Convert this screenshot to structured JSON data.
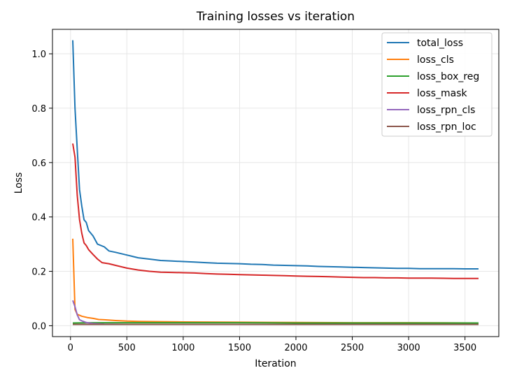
{
  "chart_data": {
    "type": "line",
    "title": "Training losses vs iteration",
    "xlabel": "Iteration",
    "ylabel": "Loss",
    "xlim": [
      -160,
      3800
    ],
    "ylim": [
      -0.04,
      1.09
    ],
    "xticks": [
      0,
      500,
      1000,
      1500,
      2000,
      2500,
      3000,
      3500
    ],
    "yticks": [
      0.0,
      0.2,
      0.4,
      0.6,
      0.8,
      1.0
    ],
    "ytick_labels": [
      "0.0",
      "0.2",
      "0.4",
      "0.6",
      "0.8",
      "1.0"
    ],
    "grid": true,
    "legend_position": "top-right",
    "series": [
      {
        "name": "total_loss",
        "color": "#1f77b4",
        "points": [
          [
            20,
            1.05
          ],
          [
            40,
            0.8
          ],
          [
            60,
            0.65
          ],
          [
            80,
            0.5
          ],
          [
            100,
            0.44
          ],
          [
            120,
            0.39
          ],
          [
            140,
            0.38
          ],
          [
            160,
            0.35
          ],
          [
            200,
            0.33
          ],
          [
            240,
            0.3
          ],
          [
            300,
            0.29
          ],
          [
            340,
            0.275
          ],
          [
            400,
            0.27
          ],
          [
            500,
            0.26
          ],
          [
            550,
            0.255
          ],
          [
            600,
            0.25
          ],
          [
            700,
            0.245
          ],
          [
            800,
            0.24
          ],
          [
            900,
            0.238
          ],
          [
            1000,
            0.236
          ],
          [
            1100,
            0.234
          ],
          [
            1200,
            0.232
          ],
          [
            1300,
            0.23
          ],
          [
            1400,
            0.229
          ],
          [
            1500,
            0.228
          ],
          [
            1600,
            0.226
          ],
          [
            1700,
            0.225
          ],
          [
            1800,
            0.223
          ],
          [
            1900,
            0.222
          ],
          [
            2000,
            0.221
          ],
          [
            2100,
            0.22
          ],
          [
            2200,
            0.218
          ],
          [
            2300,
            0.217
          ],
          [
            2400,
            0.216
          ],
          [
            2500,
            0.215
          ],
          [
            2600,
            0.214
          ],
          [
            2700,
            0.213
          ],
          [
            2800,
            0.212
          ],
          [
            2900,
            0.211
          ],
          [
            3000,
            0.211
          ],
          [
            3100,
            0.21
          ],
          [
            3200,
            0.21
          ],
          [
            3300,
            0.21
          ],
          [
            3400,
            0.21
          ],
          [
            3500,
            0.209
          ],
          [
            3620,
            0.209
          ]
        ]
      },
      {
        "name": "loss_cls",
        "color": "#ff7f0e",
        "points": [
          [
            20,
            0.32
          ],
          [
            40,
            0.06
          ],
          [
            60,
            0.042
          ],
          [
            100,
            0.035
          ],
          [
            150,
            0.03
          ],
          [
            200,
            0.027
          ],
          [
            250,
            0.023
          ],
          [
            300,
            0.022
          ],
          [
            400,
            0.019
          ],
          [
            500,
            0.017
          ],
          [
            600,
            0.016
          ],
          [
            800,
            0.015
          ],
          [
            1000,
            0.014
          ],
          [
            1500,
            0.013
          ],
          [
            2000,
            0.012
          ],
          [
            2500,
            0.011
          ],
          [
            3000,
            0.011
          ],
          [
            3620,
            0.01
          ]
        ]
      },
      {
        "name": "loss_box_reg",
        "color": "#2ca02c",
        "points": [
          [
            20,
            0.01
          ],
          [
            200,
            0.011
          ],
          [
            500,
            0.011
          ],
          [
            1000,
            0.011
          ],
          [
            1500,
            0.011
          ],
          [
            2000,
            0.01
          ],
          [
            2500,
            0.01
          ],
          [
            3000,
            0.01
          ],
          [
            3620,
            0.01
          ]
        ]
      },
      {
        "name": "loss_mask",
        "color": "#d62728",
        "points": [
          [
            20,
            0.67
          ],
          [
            40,
            0.62
          ],
          [
            60,
            0.48
          ],
          [
            80,
            0.39
          ],
          [
            100,
            0.34
          ],
          [
            120,
            0.305
          ],
          [
            140,
            0.295
          ],
          [
            160,
            0.28
          ],
          [
            200,
            0.262
          ],
          [
            240,
            0.245
          ],
          [
            280,
            0.232
          ],
          [
            340,
            0.228
          ],
          [
            400,
            0.222
          ],
          [
            500,
            0.212
          ],
          [
            600,
            0.205
          ],
          [
            700,
            0.2
          ],
          [
            800,
            0.197
          ],
          [
            900,
            0.196
          ],
          [
            1000,
            0.195
          ],
          [
            1100,
            0.194
          ],
          [
            1200,
            0.192
          ],
          [
            1300,
            0.19
          ],
          [
            1400,
            0.189
          ],
          [
            1500,
            0.188
          ],
          [
            1600,
            0.187
          ],
          [
            1700,
            0.186
          ],
          [
            1800,
            0.185
          ],
          [
            1900,
            0.184
          ],
          [
            2000,
            0.183
          ],
          [
            2100,
            0.182
          ],
          [
            2200,
            0.181
          ],
          [
            2300,
            0.18
          ],
          [
            2400,
            0.179
          ],
          [
            2500,
            0.178
          ],
          [
            2600,
            0.177
          ],
          [
            2700,
            0.177
          ],
          [
            2800,
            0.176
          ],
          [
            2900,
            0.176
          ],
          [
            3000,
            0.175
          ],
          [
            3200,
            0.175
          ],
          [
            3400,
            0.174
          ],
          [
            3620,
            0.174
          ]
        ]
      },
      {
        "name": "loss_rpn_cls",
        "color": "#9467bd",
        "points": [
          [
            20,
            0.093
          ],
          [
            40,
            0.07
          ],
          [
            60,
            0.04
          ],
          [
            80,
            0.022
          ],
          [
            100,
            0.018
          ],
          [
            140,
            0.012
          ],
          [
            200,
            0.008
          ],
          [
            300,
            0.006
          ],
          [
            500,
            0.005
          ],
          [
            1000,
            0.005
          ],
          [
            2000,
            0.005
          ],
          [
            3000,
            0.005
          ],
          [
            3620,
            0.005
          ]
        ]
      },
      {
        "name": "loss_rpn_loc",
        "color": "#8c564b",
        "points": [
          [
            20,
            0.005
          ],
          [
            100,
            0.005
          ],
          [
            500,
            0.005
          ],
          [
            1000,
            0.005
          ],
          [
            2000,
            0.005
          ],
          [
            3000,
            0.005
          ],
          [
            3620,
            0.005
          ]
        ]
      }
    ]
  }
}
